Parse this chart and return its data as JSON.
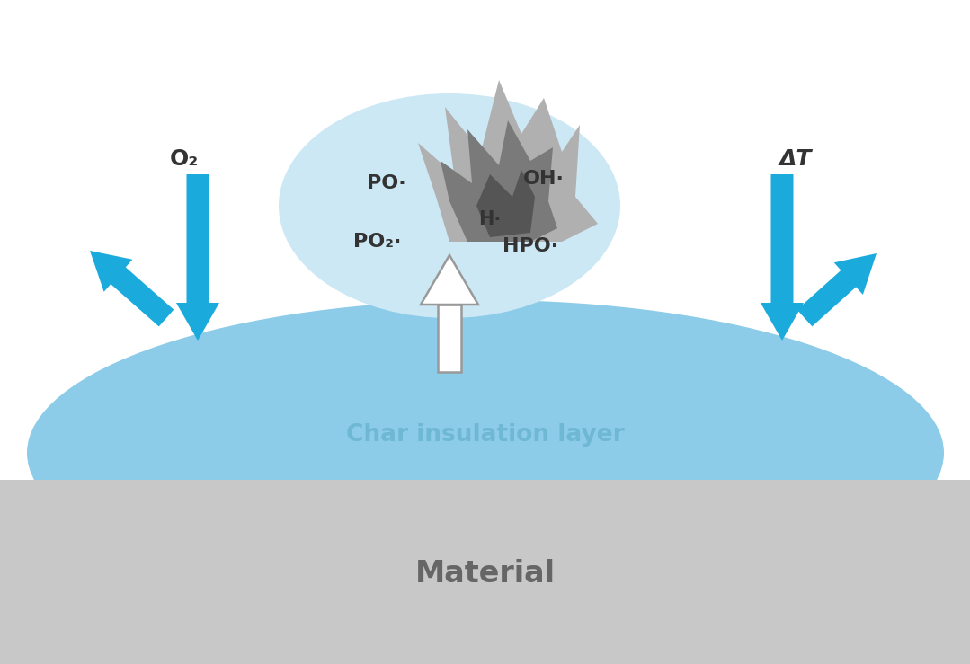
{
  "bg_color": "#ffffff",
  "material_color": "#c8c8c8",
  "char_color": "#8dcce8",
  "bubble_color": "#cde8f5",
  "arrow_blue": "#1aabdc",
  "text_dark": "#333333",
  "char_label_color": "#6eb8d4",
  "material_label_color": "#666666",
  "flame_light": "#aaaaaa",
  "flame_mid": "#888888",
  "flame_dark": "#555555",
  "o2_label": "O₂",
  "dt_label": "ΔT",
  "po_label": "PO·",
  "oh_label": "OH·",
  "h_label": "H·",
  "po2_label": "PO₂·",
  "hpo_label": "HPO·",
  "char_label": "Char insulation layer",
  "material_label": "Material"
}
